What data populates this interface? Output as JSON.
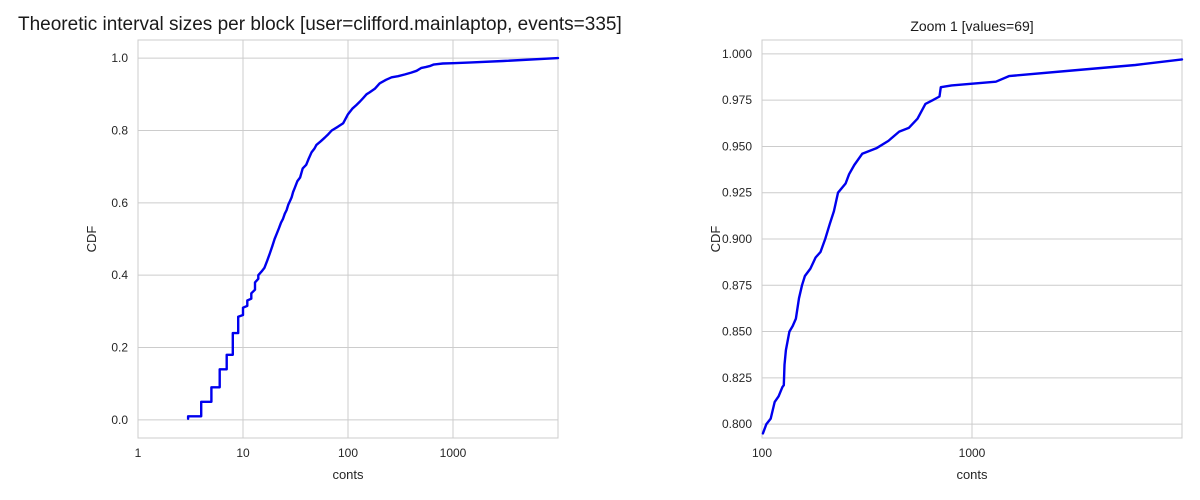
{
  "chart_data": [
    {
      "type": "line",
      "title": "Theoretic interval sizes per block [user=clifford.mainlaptop, events=335]",
      "xlabel": "conts",
      "ylabel": "CDF",
      "xscale": "log",
      "xlim": [
        1,
        10000
      ],
      "ylim": [
        -0.05,
        1.05
      ],
      "xticks": [
        1,
        10,
        100,
        1000
      ],
      "xtick_labels": [
        "1",
        "10",
        "100",
        "1000"
      ],
      "yticks": [
        0.0,
        0.2,
        0.4,
        0.6,
        0.8,
        1.0
      ],
      "ytick_labels": [
        "0.0",
        "0.2",
        "0.4",
        "0.6",
        "0.8",
        "1.0"
      ],
      "grid": true,
      "color": "#0000ee",
      "series": [
        {
          "x": [
            3,
            3,
            4,
            4,
            5,
            5,
            6,
            6,
            7,
            7,
            8,
            8,
            9,
            9,
            10,
            10,
            11,
            11,
            12,
            12,
            13,
            13,
            14,
            14,
            15,
            16,
            17,
            18,
            19,
            20,
            21,
            22,
            23,
            24,
            25,
            26,
            27,
            28,
            29,
            30,
            31,
            33,
            35,
            37,
            40,
            42,
            45,
            48,
            50,
            55,
            60,
            65,
            70,
            80,
            90,
            100,
            110,
            120,
            130,
            140,
            150,
            160,
            180,
            200,
            230,
            260,
            300,
            350,
            400,
            450,
            500,
            550,
            600,
            650,
            700,
            800,
            1000,
            1500,
            3000,
            10000
          ],
          "y": [
            0.003,
            0.01,
            0.01,
            0.05,
            0.05,
            0.09,
            0.09,
            0.14,
            0.14,
            0.18,
            0.18,
            0.24,
            0.24,
            0.285,
            0.29,
            0.31,
            0.315,
            0.33,
            0.335,
            0.35,
            0.36,
            0.38,
            0.39,
            0.4,
            0.41,
            0.42,
            0.44,
            0.46,
            0.48,
            0.5,
            0.515,
            0.53,
            0.545,
            0.555,
            0.57,
            0.58,
            0.595,
            0.605,
            0.615,
            0.63,
            0.64,
            0.66,
            0.67,
            0.695,
            0.705,
            0.72,
            0.74,
            0.75,
            0.76,
            0.77,
            0.78,
            0.79,
            0.8,
            0.81,
            0.82,
            0.845,
            0.86,
            0.87,
            0.88,
            0.89,
            0.9,
            0.905,
            0.915,
            0.93,
            0.94,
            0.947,
            0.95,
            0.955,
            0.96,
            0.965,
            0.973,
            0.975,
            0.978,
            0.982,
            0.983,
            0.985,
            0.986,
            0.988,
            0.992,
            1.0
          ]
        }
      ]
    },
    {
      "type": "line",
      "title": "Zoom 1 [values=69]",
      "xlabel": "conts",
      "ylabel": "CDF",
      "xscale": "log",
      "xlim": [
        100,
        10000
      ],
      "ylim": [
        0.7925,
        1.0075
      ],
      "xticks": [
        100,
        1000
      ],
      "xtick_labels": [
        "100",
        "1000"
      ],
      "yticks": [
        0.8,
        0.825,
        0.85,
        0.875,
        0.9,
        0.925,
        0.95,
        0.975,
        1.0
      ],
      "ytick_labels": [
        "0.800",
        "0.825",
        "0.850",
        "0.875",
        "0.900",
        "0.925",
        "0.950",
        "0.975",
        "1.000"
      ],
      "grid": true,
      "color": "#0000ee",
      "series": [
        {
          "x": [
            101,
            105,
            110,
            115,
            120,
            125,
            127,
            128,
            130,
            135,
            140,
            145,
            150,
            155,
            160,
            170,
            180,
            190,
            200,
            210,
            220,
            230,
            250,
            260,
            275,
            300,
            350,
            400,
            450,
            500,
            550,
            600,
            650,
            700,
            710,
            800,
            1300,
            1500,
            3000,
            6000,
            10000
          ],
          "y": [
            0.795,
            0.8,
            0.803,
            0.812,
            0.815,
            0.82,
            0.821,
            0.832,
            0.84,
            0.85,
            0.853,
            0.857,
            0.868,
            0.875,
            0.88,
            0.884,
            0.89,
            0.893,
            0.9,
            0.908,
            0.915,
            0.925,
            0.93,
            0.935,
            0.94,
            0.946,
            0.949,
            0.953,
            0.958,
            0.96,
            0.965,
            0.973,
            0.975,
            0.977,
            0.982,
            0.983,
            0.985,
            0.988,
            0.991,
            0.994,
            0.997
          ]
        }
      ]
    }
  ]
}
